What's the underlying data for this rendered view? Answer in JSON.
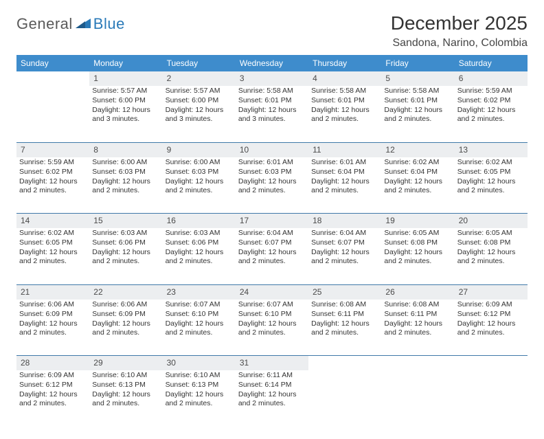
{
  "logo": {
    "line1": "General",
    "line2": "Blue"
  },
  "title": "December 2025",
  "location": "Sandona, Narino, Colombia",
  "colors": {
    "header_bg": "#3e8ccc",
    "header_text": "#ffffff",
    "daynum_bg": "#eceef0",
    "row_divider": "#3e78a8",
    "body_text": "#333333",
    "logo_gray": "#5a5a5a",
    "logo_blue": "#2a7ab8"
  },
  "weekdays": [
    "Sunday",
    "Monday",
    "Tuesday",
    "Wednesday",
    "Thursday",
    "Friday",
    "Saturday"
  ],
  "weeks": [
    {
      "nums": [
        "",
        "1",
        "2",
        "3",
        "4",
        "5",
        "6"
      ],
      "cells": [
        null,
        {
          "sunrise": "5:57 AM",
          "sunset": "6:00 PM",
          "daylight": "12 hours and 3 minutes."
        },
        {
          "sunrise": "5:57 AM",
          "sunset": "6:00 PM",
          "daylight": "12 hours and 3 minutes."
        },
        {
          "sunrise": "5:58 AM",
          "sunset": "6:01 PM",
          "daylight": "12 hours and 3 minutes."
        },
        {
          "sunrise": "5:58 AM",
          "sunset": "6:01 PM",
          "daylight": "12 hours and 2 minutes."
        },
        {
          "sunrise": "5:58 AM",
          "sunset": "6:01 PM",
          "daylight": "12 hours and 2 minutes."
        },
        {
          "sunrise": "5:59 AM",
          "sunset": "6:02 PM",
          "daylight": "12 hours and 2 minutes."
        }
      ]
    },
    {
      "nums": [
        "7",
        "8",
        "9",
        "10",
        "11",
        "12",
        "13"
      ],
      "cells": [
        {
          "sunrise": "5:59 AM",
          "sunset": "6:02 PM",
          "daylight": "12 hours and 2 minutes."
        },
        {
          "sunrise": "6:00 AM",
          "sunset": "6:03 PM",
          "daylight": "12 hours and 2 minutes."
        },
        {
          "sunrise": "6:00 AM",
          "sunset": "6:03 PM",
          "daylight": "12 hours and 2 minutes."
        },
        {
          "sunrise": "6:01 AM",
          "sunset": "6:03 PM",
          "daylight": "12 hours and 2 minutes."
        },
        {
          "sunrise": "6:01 AM",
          "sunset": "6:04 PM",
          "daylight": "12 hours and 2 minutes."
        },
        {
          "sunrise": "6:02 AM",
          "sunset": "6:04 PM",
          "daylight": "12 hours and 2 minutes."
        },
        {
          "sunrise": "6:02 AM",
          "sunset": "6:05 PM",
          "daylight": "12 hours and 2 minutes."
        }
      ]
    },
    {
      "nums": [
        "14",
        "15",
        "16",
        "17",
        "18",
        "19",
        "20"
      ],
      "cells": [
        {
          "sunrise": "6:02 AM",
          "sunset": "6:05 PM",
          "daylight": "12 hours and 2 minutes."
        },
        {
          "sunrise": "6:03 AM",
          "sunset": "6:06 PM",
          "daylight": "12 hours and 2 minutes."
        },
        {
          "sunrise": "6:03 AM",
          "sunset": "6:06 PM",
          "daylight": "12 hours and 2 minutes."
        },
        {
          "sunrise": "6:04 AM",
          "sunset": "6:07 PM",
          "daylight": "12 hours and 2 minutes."
        },
        {
          "sunrise": "6:04 AM",
          "sunset": "6:07 PM",
          "daylight": "12 hours and 2 minutes."
        },
        {
          "sunrise": "6:05 AM",
          "sunset": "6:08 PM",
          "daylight": "12 hours and 2 minutes."
        },
        {
          "sunrise": "6:05 AM",
          "sunset": "6:08 PM",
          "daylight": "12 hours and 2 minutes."
        }
      ]
    },
    {
      "nums": [
        "21",
        "22",
        "23",
        "24",
        "25",
        "26",
        "27"
      ],
      "cells": [
        {
          "sunrise": "6:06 AM",
          "sunset": "6:09 PM",
          "daylight": "12 hours and 2 minutes."
        },
        {
          "sunrise": "6:06 AM",
          "sunset": "6:09 PM",
          "daylight": "12 hours and 2 minutes."
        },
        {
          "sunrise": "6:07 AM",
          "sunset": "6:10 PM",
          "daylight": "12 hours and 2 minutes."
        },
        {
          "sunrise": "6:07 AM",
          "sunset": "6:10 PM",
          "daylight": "12 hours and 2 minutes."
        },
        {
          "sunrise": "6:08 AM",
          "sunset": "6:11 PM",
          "daylight": "12 hours and 2 minutes."
        },
        {
          "sunrise": "6:08 AM",
          "sunset": "6:11 PM",
          "daylight": "12 hours and 2 minutes."
        },
        {
          "sunrise": "6:09 AM",
          "sunset": "6:12 PM",
          "daylight": "12 hours and 2 minutes."
        }
      ]
    },
    {
      "nums": [
        "28",
        "29",
        "30",
        "31",
        "",
        "",
        ""
      ],
      "cells": [
        {
          "sunrise": "6:09 AM",
          "sunset": "6:12 PM",
          "daylight": "12 hours and 2 minutes."
        },
        {
          "sunrise": "6:10 AM",
          "sunset": "6:13 PM",
          "daylight": "12 hours and 2 minutes."
        },
        {
          "sunrise": "6:10 AM",
          "sunset": "6:13 PM",
          "daylight": "12 hours and 2 minutes."
        },
        {
          "sunrise": "6:11 AM",
          "sunset": "6:14 PM",
          "daylight": "12 hours and 2 minutes."
        },
        null,
        null,
        null
      ]
    }
  ],
  "labels": {
    "sunrise": "Sunrise:",
    "sunset": "Sunset:",
    "daylight": "Daylight:"
  }
}
